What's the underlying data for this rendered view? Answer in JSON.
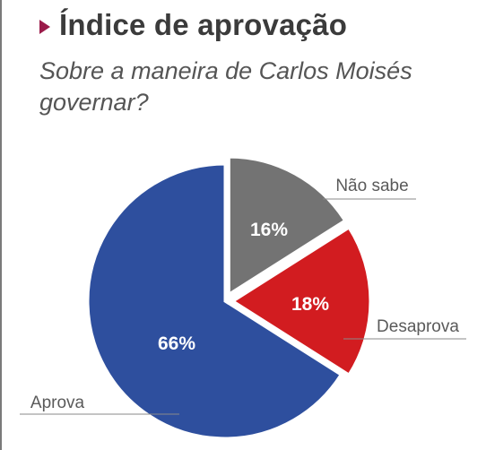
{
  "header": {
    "title": "Índice de aprovação",
    "subtitle": "Sobre a maneira de Carlos Moisés governar?"
  },
  "colors": {
    "marker": "#9b1b4a",
    "aprova": "#2e4f9e",
    "desaprova": "#d21c20",
    "nao_sabe": "#737373"
  },
  "chart_data": {
    "type": "pie",
    "title": "Índice de aprovação",
    "subtitle": "Sobre a maneira de Carlos Moisés governar?",
    "slices": [
      {
        "label": "Não sabe",
        "value": 16,
        "display": "16%",
        "color": "#737373"
      },
      {
        "label": "Desaprova",
        "value": 18,
        "display": "18%",
        "color": "#d21c20"
      },
      {
        "label": "Aprova",
        "value": 66,
        "display": "66%",
        "color": "#2e4f9e"
      }
    ],
    "unit": "%",
    "start": "top",
    "direction": "clockwise",
    "exploded": [
      "Não sabe",
      "Desaprova"
    ]
  }
}
